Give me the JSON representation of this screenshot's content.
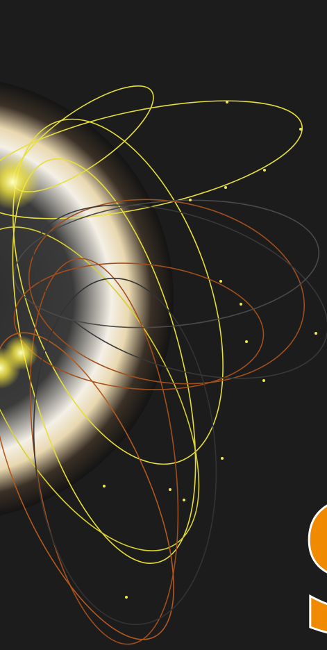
{
  "graphic": {
    "letter": "S"
  }
}
